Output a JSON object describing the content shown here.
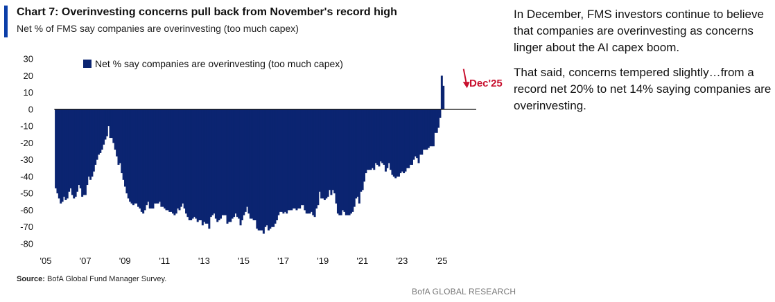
{
  "header": {
    "title": "Chart 7: Overinvesting concerns pull back from November's record high",
    "subtitle": "Net % of FMS say companies are overinvesting (too much capex)"
  },
  "commentary": {
    "paragraph_1": "In December, FMS investors continue to believe that companies are overinvesting as concerns linger about the AI capex boom.",
    "paragraph_2": "That said, concerns tempered slightly…from a record net 20% to net 14% saying companies are overinvesting."
  },
  "footer": {
    "source_label": "Source:",
    "source_text": "BofA Global Fund Manager Survey.",
    "brand": "BofA GLOBAL RESEARCH"
  },
  "colors": {
    "bar": "#0b2471",
    "accent": "#0b3ea8",
    "annotation": "#c8102e"
  },
  "chart_data": {
    "type": "bar",
    "title": "Chart 7: Overinvesting concerns pull back from November's record high",
    "ylabel": "Net % of FMS say companies are overinvesting (too much capex)",
    "ylim": [
      -80,
      30
    ],
    "y_ticks": [
      30,
      20,
      10,
      0,
      -10,
      -20,
      -30,
      -40,
      -50,
      -60,
      -70,
      -80
    ],
    "x_range": [
      2005,
      2026.4
    ],
    "x_ticks": [
      {
        "year": 2005,
        "label": "'05"
      },
      {
        "year": 2007,
        "label": "'07"
      },
      {
        "year": 2009,
        "label": "'09"
      },
      {
        "year": 2011,
        "label": "'11"
      },
      {
        "year": 2013,
        "label": "'13"
      },
      {
        "year": 2015,
        "label": "'15"
      },
      {
        "year": 2017,
        "label": "'17"
      },
      {
        "year": 2019,
        "label": "'19"
      },
      {
        "year": 2021,
        "label": "'21"
      },
      {
        "year": 2023,
        "label": "'23"
      },
      {
        "year": 2025,
        "label": "'25"
      }
    ],
    "legend": "Net % say companies are overinvesting (too much capex)",
    "legend_position": "top-left",
    "annotation": {
      "text": "Dec'25",
      "year": 2025.9,
      "value": 14
    },
    "series": [
      {
        "name": "Net % say companies are overinvesting (too much capex)",
        "x_start": 2005.5,
        "step": 0.0833333,
        "values": [
          -47,
          -50,
          -53,
          -56,
          -55,
          -52,
          -54,
          -53,
          -49,
          -47,
          -51,
          -53,
          -52,
          -49,
          -45,
          -47,
          -52,
          -51,
          -51,
          -45,
          -40,
          -42,
          -40,
          -37,
          -33,
          -30,
          -27,
          -26,
          -24,
          -21,
          -18,
          -16,
          -10,
          -17,
          -17,
          -20,
          -24,
          -28,
          -33,
          -32,
          -38,
          -42,
          -46,
          -50,
          -53,
          -55,
          -56,
          -57,
          -56,
          -56,
          -58,
          -59,
          -61,
          -62,
          -60,
          -57,
          -55,
          -59,
          -59,
          -59,
          -56,
          -56,
          -56,
          -55,
          -58,
          -58,
          -59,
          -60,
          -60,
          -61,
          -61,
          -62,
          -63,
          -62,
          -59,
          -60,
          -58,
          -56,
          -59,
          -62,
          -64,
          -66,
          -66,
          -65,
          -64,
          -65,
          -67,
          -66,
          -66,
          -69,
          -67,
          -68,
          -68,
          -71,
          -64,
          -63,
          -62,
          -65,
          -67,
          -66,
          -65,
          -63,
          -63,
          -63,
          -68,
          -67,
          -67,
          -65,
          -64,
          -62,
          -64,
          -65,
          -69,
          -66,
          -63,
          -61,
          -58,
          -62,
          -65,
          -65,
          -66,
          -66,
          -71,
          -72,
          -72,
          -72,
          -74,
          -70,
          -69,
          -72,
          -71,
          -70,
          -70,
          -68,
          -66,
          -63,
          -61,
          -61,
          -62,
          -61,
          -62,
          -60,
          -60,
          -60,
          -59,
          -59,
          -60,
          -59,
          -59,
          -57,
          -57,
          -60,
          -62,
          -62,
          -62,
          -61,
          -63,
          -64,
          -59,
          -57,
          -49,
          -53,
          -53,
          -54,
          -53,
          -52,
          -48,
          -51,
          -48,
          -50,
          -56,
          -62,
          -63,
          -63,
          -60,
          -61,
          -63,
          -63,
          -63,
          -62,
          -61,
          -58,
          -53,
          -52,
          -56,
          -49,
          -48,
          -43,
          -38,
          -36,
          -36,
          -36,
          -35,
          -36,
          -32,
          -33,
          -34,
          -31,
          -32,
          -33,
          -37,
          -35,
          -32,
          -36,
          -39,
          -40,
          -41,
          -40,
          -40,
          -38,
          -37,
          -38,
          -37,
          -35,
          -35,
          -33,
          -33,
          -30,
          -28,
          -29,
          -32,
          -27,
          -27,
          -24,
          -24,
          -24,
          -23,
          -22,
          -22,
          -22,
          -14,
          -14,
          -11,
          -5,
          20,
          14
        ]
      }
    ]
  }
}
